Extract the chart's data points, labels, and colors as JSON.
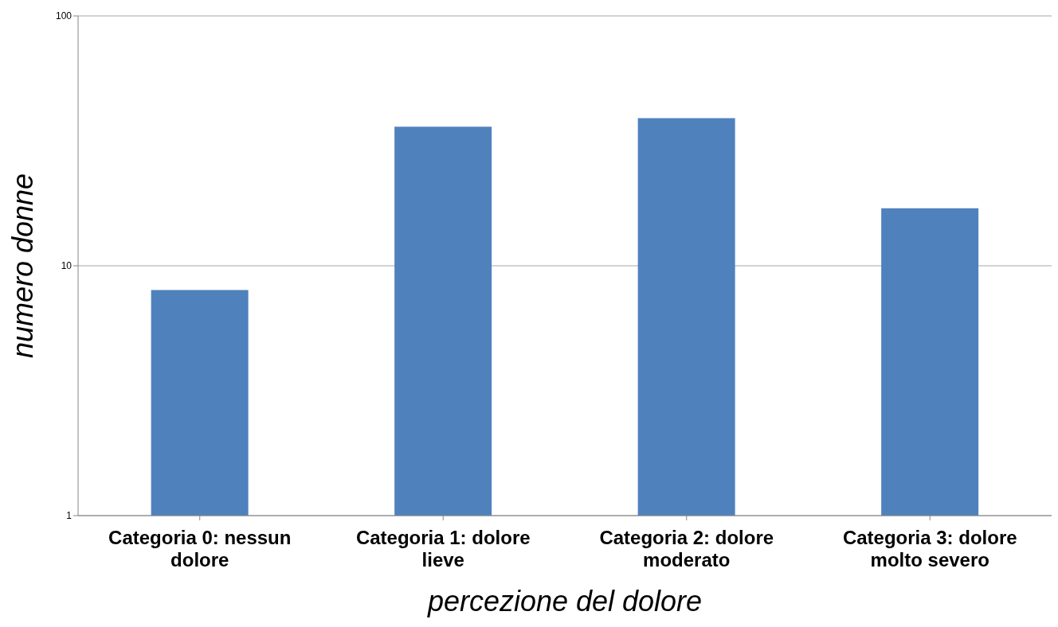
{
  "chart_data": {
    "type": "bar",
    "xlabel": "percezione del dolore",
    "ylabel": "numero donne",
    "categories": [
      "Categoria 0: nessun dolore",
      "Categoria 1: dolore lieve",
      "Categoria 2: dolore moderato",
      "Categoria 3: dolore molto severo"
    ],
    "values": [
      8,
      36,
      39,
      17
    ],
    "color": "#4f81bd",
    "log": true,
    "ylim": [
      1,
      100
    ],
    "yticks": [
      1,
      10,
      100
    ],
    "grid": "y"
  }
}
